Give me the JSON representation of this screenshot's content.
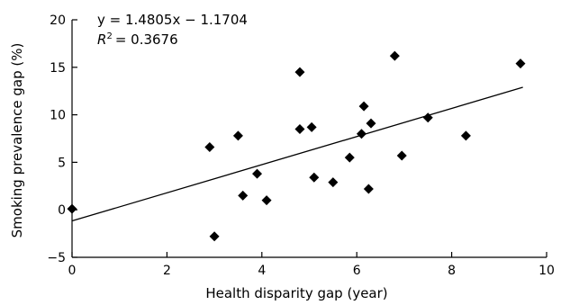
{
  "chart_data": {
    "type": "scatter",
    "title": "",
    "xlabel": "Health disparity gap (year)",
    "ylabel": "Smoking prevalence gap (%)",
    "xlim": [
      0,
      10
    ],
    "ylim": [
      -5,
      20
    ],
    "x_ticks": [
      0,
      2,
      4,
      6,
      8,
      10
    ],
    "y_ticks": [
      -5,
      0,
      5,
      10,
      15,
      20
    ],
    "x_tick_labels": [
      "0",
      "2",
      "4",
      "6",
      "8",
      "10"
    ],
    "y_tick_labels": [
      "−5",
      "0",
      "5",
      "10",
      "15",
      "20"
    ],
    "grid": false,
    "marker": "diamond",
    "marker_color": "#000000",
    "series": [
      {
        "points": [
          {
            "x": 0.0,
            "y": 0.1
          },
          {
            "x": 2.9,
            "y": 6.6
          },
          {
            "x": 3.0,
            "y": -2.8
          },
          {
            "x": 3.5,
            "y": 7.8
          },
          {
            "x": 3.6,
            "y": 1.5
          },
          {
            "x": 3.9,
            "y": 3.8
          },
          {
            "x": 4.1,
            "y": 1.0
          },
          {
            "x": 4.8,
            "y": 14.5
          },
          {
            "x": 4.8,
            "y": 8.5
          },
          {
            "x": 5.05,
            "y": 8.7
          },
          {
            "x": 5.1,
            "y": 3.4
          },
          {
            "x": 5.5,
            "y": 2.9
          },
          {
            "x": 5.85,
            "y": 5.5
          },
          {
            "x": 6.1,
            "y": 8.0
          },
          {
            "x": 6.15,
            "y": 10.9
          },
          {
            "x": 6.25,
            "y": 2.2
          },
          {
            "x": 6.3,
            "y": 9.1
          },
          {
            "x": 6.8,
            "y": 16.2
          },
          {
            "x": 6.95,
            "y": 5.7
          },
          {
            "x": 7.5,
            "y": 9.7
          },
          {
            "x": 8.3,
            "y": 7.8
          },
          {
            "x": 9.45,
            "y": 15.4
          }
        ]
      }
    ],
    "trendline": {
      "slope": 1.4805,
      "intercept": -1.1704,
      "x_range": [
        0,
        9.5
      ]
    },
    "annotation": {
      "equation": "y = 1.4805x − 1.1704",
      "r2_symbol": "R",
      "r2_superscript": "2",
      "r2_value": "= 0.3676",
      "placement": "top-left"
    }
  }
}
